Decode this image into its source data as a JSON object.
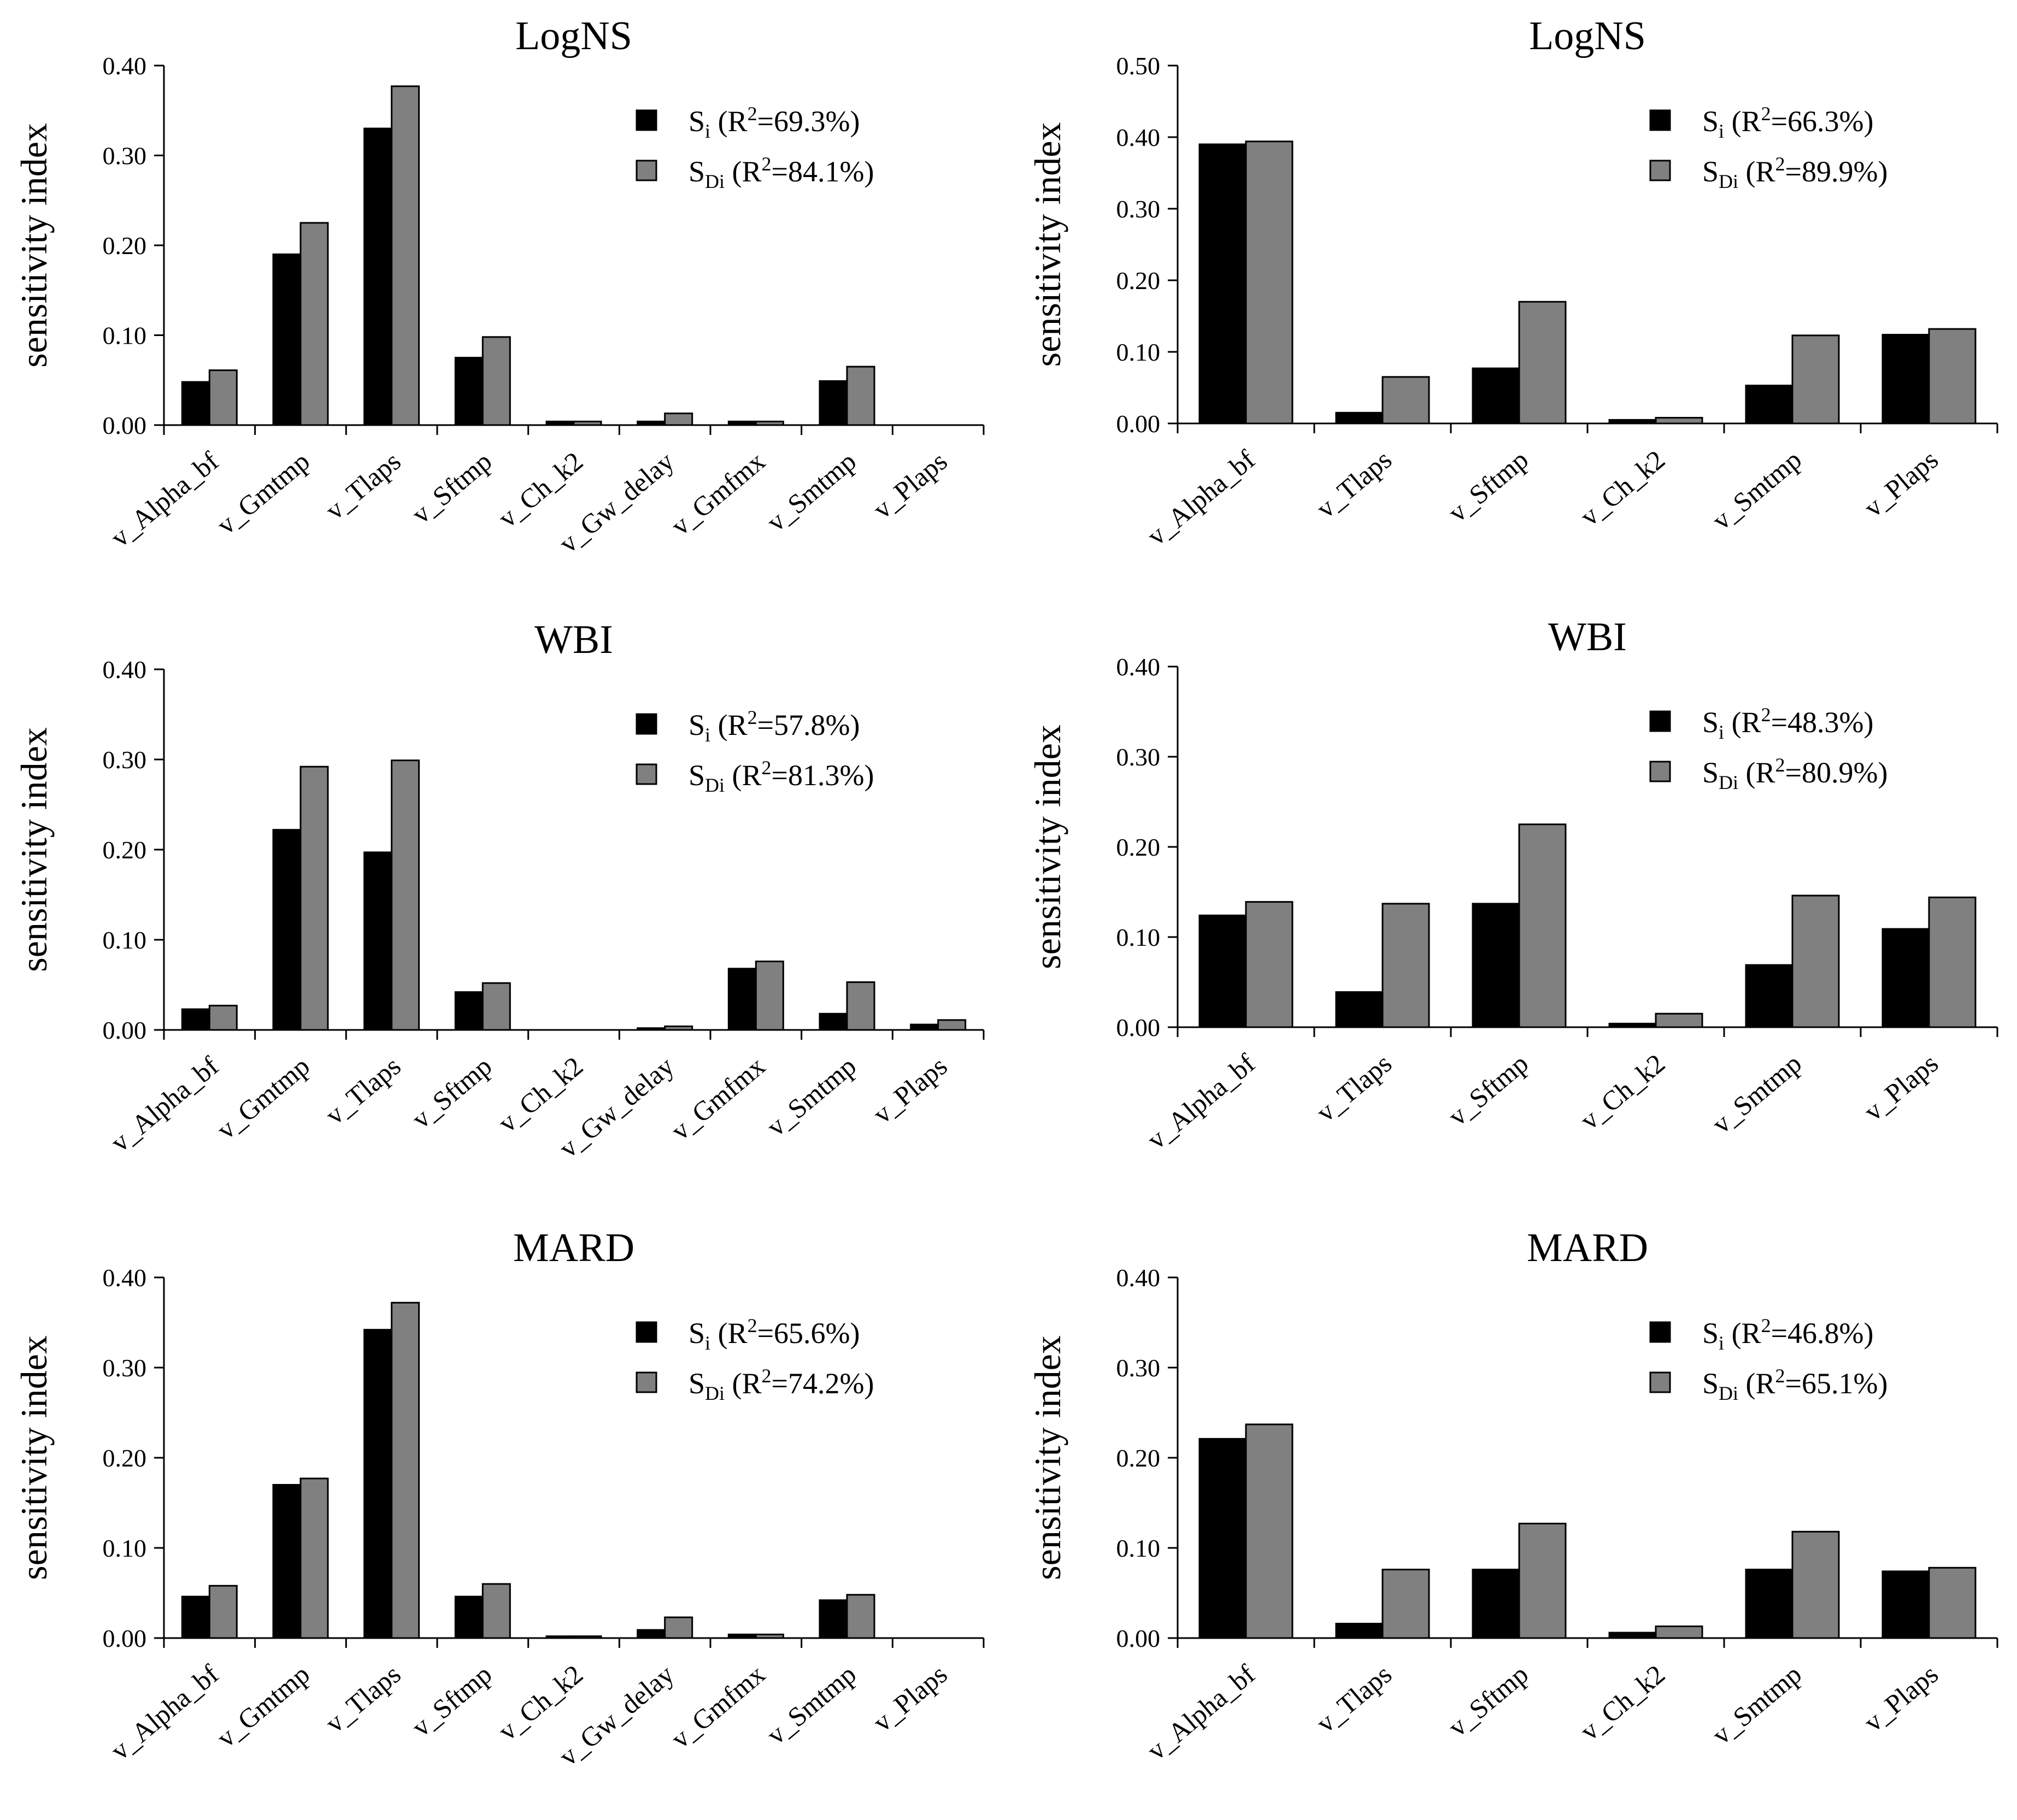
{
  "figure": {
    "description_free": true
  },
  "styles": {
    "si_color": "#000000",
    "sdi_color": "#808080",
    "axis_color": "#000000"
  },
  "chart_data": [
    {
      "type": "bar",
      "title": "LogNS",
      "ylabel": "sensitivity index",
      "ylim": [
        0,
        0.4
      ],
      "yticks": [
        "0.00",
        "0.10",
        "0.20",
        "0.30",
        "0.40"
      ],
      "categories": [
        "v_Alpha_bf",
        "v_Gmtmp",
        "v_Tlaps",
        "v_Sftmp",
        "v_Ch_k2",
        "v_Gw_delay",
        "v_Gmfmx",
        "v_Smtmp",
        "v_Plaps"
      ],
      "series": [
        {
          "name": "Si",
          "legend": {
            "sym": "S",
            "sub": "i",
            "label": " (R",
            "sup": "2",
            "value": "=69.3%)"
          },
          "values": [
            0.048,
            0.19,
            0.33,
            0.075,
            0.004,
            0.004,
            0.004,
            0.049,
            0.0
          ]
        },
        {
          "name": "SDi",
          "legend": {
            "sym": "S",
            "sub": "Di",
            "label": " (R",
            "sup": "2",
            "value": "=84.1%)"
          },
          "values": [
            0.061,
            0.225,
            0.377,
            0.098,
            0.004,
            0.013,
            0.004,
            0.065,
            0.0
          ]
        }
      ]
    },
    {
      "type": "bar",
      "title": "LogNS",
      "ylabel": "sensitivity index",
      "ylim": [
        0,
        0.5
      ],
      "yticks": [
        "0.00",
        "0.10",
        "0.20",
        "0.30",
        "0.40",
        "0.50"
      ],
      "categories": [
        "v_Alpha_bf",
        "v_Tlaps",
        "v_Sftmp",
        "v_Ch_k2",
        "v_Smtmp",
        "v_Plaps"
      ],
      "series": [
        {
          "name": "Si",
          "legend": {
            "sym": "S",
            "sub": "i",
            "label": " (R",
            "sup": "2",
            "value": "=66.3%)"
          },
          "values": [
            0.39,
            0.015,
            0.077,
            0.005,
            0.053,
            0.124
          ]
        },
        {
          "name": "SDi",
          "legend": {
            "sym": "S",
            "sub": "Di",
            "label": " (R",
            "sup": "2",
            "value": "=89.9%)"
          },
          "values": [
            0.394,
            0.065,
            0.17,
            0.008,
            0.123,
            0.132
          ]
        }
      ]
    },
    {
      "type": "bar",
      "title": "WBI",
      "ylabel": "sensitivity index",
      "ylim": [
        0,
        0.4
      ],
      "yticks": [
        "0.00",
        "0.10",
        "0.20",
        "0.30",
        "0.40"
      ],
      "categories": [
        "v_Alpha_bf",
        "v_Gmtmp",
        "v_Tlaps",
        "v_Sftmp",
        "v_Ch_k2",
        "v_Gw_delay",
        "v_Gmfmx",
        "v_Smtmp",
        "v_Plaps"
      ],
      "series": [
        {
          "name": "Si",
          "legend": {
            "sym": "S",
            "sub": "i",
            "label": " (R",
            "sup": "2",
            "value": "=57.8%)"
          },
          "values": [
            0.023,
            0.222,
            0.197,
            0.042,
            0.0,
            0.002,
            0.068,
            0.018,
            0.006
          ]
        },
        {
          "name": "SDi",
          "legend": {
            "sym": "S",
            "sub": "Di",
            "label": " (R",
            "sup": "2",
            "value": "=81.3%)"
          },
          "values": [
            0.027,
            0.292,
            0.299,
            0.052,
            0.0,
            0.004,
            0.076,
            0.053,
            0.011
          ]
        }
      ]
    },
    {
      "type": "bar",
      "title": "WBI",
      "ylabel": "sensitivity index",
      "ylim": [
        0,
        0.4
      ],
      "yticks": [
        "0.00",
        "0.10",
        "0.20",
        "0.30",
        "0.40"
      ],
      "categories": [
        "v_Alpha_bf",
        "v_Tlaps",
        "v_Sftmp",
        "v_Ch_k2",
        "v_Smtmp",
        "v_Plaps"
      ],
      "series": [
        {
          "name": "Si",
          "legend": {
            "sym": "S",
            "sub": "i",
            "label": " (R",
            "sup": "2",
            "value": "=48.3%)"
          },
          "values": [
            0.124,
            0.039,
            0.137,
            0.004,
            0.069,
            0.109
          ]
        },
        {
          "name": "SDi",
          "legend": {
            "sym": "S",
            "sub": "Di",
            "label": " (R",
            "sup": "2",
            "value": "=80.9%)"
          },
          "values": [
            0.139,
            0.137,
            0.225,
            0.015,
            0.146,
            0.144
          ]
        }
      ]
    },
    {
      "type": "bar",
      "title": "MARD",
      "ylabel": "sensitivity index",
      "ylim": [
        0,
        0.4
      ],
      "yticks": [
        "0.00",
        "0.10",
        "0.20",
        "0.30",
        "0.40"
      ],
      "categories": [
        "v_Alpha_bf",
        "v_Gmtmp",
        "v_Tlaps",
        "v_Sftmp",
        "v_Ch_k2",
        "v_Gw_delay",
        "v_Gmfmx",
        "v_Smtmp",
        "v_Plaps"
      ],
      "series": [
        {
          "name": "Si",
          "legend": {
            "sym": "S",
            "sub": "i",
            "label": " (R",
            "sup": "2",
            "value": "=65.6%)"
          },
          "values": [
            0.046,
            0.17,
            0.342,
            0.046,
            0.002,
            0.009,
            0.004,
            0.042,
            0.0
          ]
        },
        {
          "name": "SDi",
          "legend": {
            "sym": "S",
            "sub": "Di",
            "label": " (R",
            "sup": "2",
            "value": "=74.2%)"
          },
          "values": [
            0.058,
            0.177,
            0.372,
            0.06,
            0.002,
            0.023,
            0.004,
            0.048,
            0.0
          ]
        }
      ]
    },
    {
      "type": "bar",
      "title": "MARD",
      "ylabel": "sensitivity index",
      "ylim": [
        0,
        0.4
      ],
      "yticks": [
        "0.00",
        "0.10",
        "0.20",
        "0.30",
        "0.40"
      ],
      "categories": [
        "v_Alpha_bf",
        "v_Tlaps",
        "v_Sftmp",
        "v_Ch_k2",
        "v_Smtmp",
        "v_Plaps"
      ],
      "series": [
        {
          "name": "Si",
          "legend": {
            "sym": "S",
            "sub": "i",
            "label": " (R",
            "sup": "2",
            "value": "=46.8%)"
          },
          "values": [
            0.221,
            0.016,
            0.076,
            0.006,
            0.076,
            0.074
          ]
        },
        {
          "name": "SDi",
          "legend": {
            "sym": "S",
            "sub": "Di",
            "label": " (R",
            "sup": "2",
            "value": "=65.1%)"
          },
          "values": [
            0.237,
            0.076,
            0.127,
            0.013,
            0.118,
            0.078
          ]
        }
      ]
    }
  ]
}
